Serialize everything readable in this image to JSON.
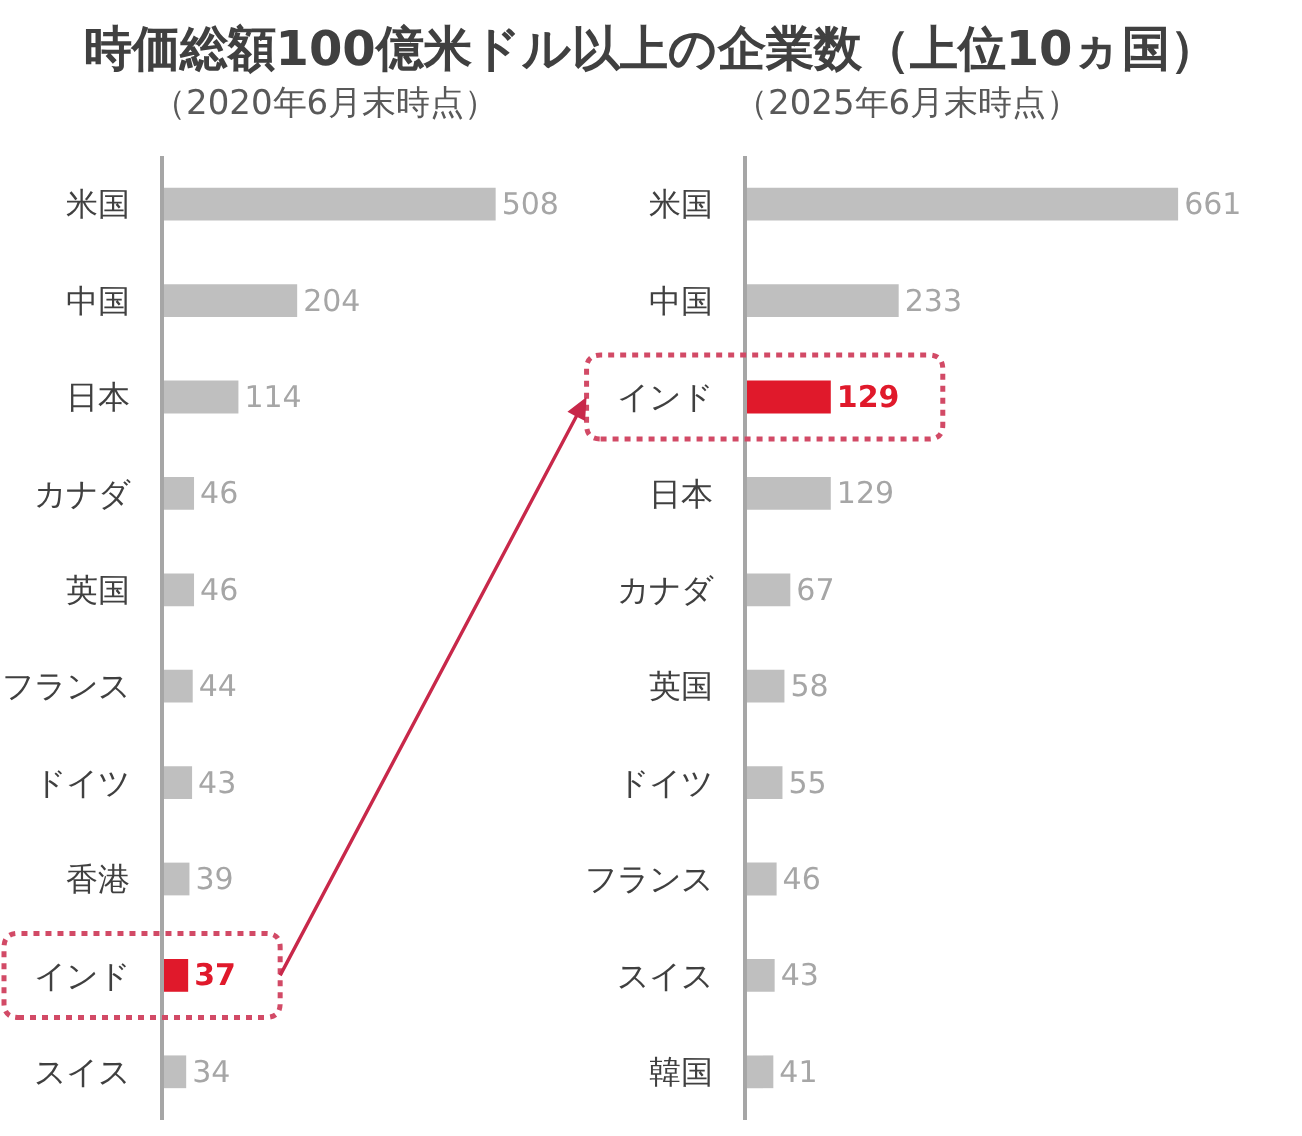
{
  "chart_data": [
    {
      "type": "bar",
      "orientation": "horizontal",
      "title": "時価総額100億米ドル以上の企業数（上位10ヵ国）",
      "subtitle": "（2020年6月末時点）",
      "categories": [
        "米国",
        "中国",
        "日本",
        "カナダ",
        "英国",
        "フランス",
        "ドイツ",
        "香港",
        "インド",
        "スイス"
      ],
      "values": [
        508,
        204,
        114,
        46,
        46,
        44,
        43,
        39,
        37,
        34
      ],
      "colors": [
        "#bfbfbf",
        "#bfbfbf",
        "#bfbfbf",
        "#bfbfbf",
        "#bfbfbf",
        "#bfbfbf",
        "#bfbfbf",
        "#bfbfbf",
        "#e0192b",
        "#bfbfbf"
      ],
      "data_labels": true,
      "tick_labels": "y"
    },
    {
      "type": "bar",
      "orientation": "horizontal",
      "subtitle": "（2025年6月末時点）",
      "categories": [
        "米国",
        "中国",
        "インド",
        "日本",
        "カナダ",
        "英国",
        "ドイツ",
        "フランス",
        "スイス",
        "韓国"
      ],
      "values": [
        661,
        233,
        129,
        129,
        67,
        58,
        55,
        46,
        43,
        41
      ],
      "colors": [
        "#bfbfbf",
        "#bfbfbf",
        "#e0192b",
        "#bfbfbf",
        "#bfbfbf",
        "#bfbfbf",
        "#bfbfbf",
        "#bfbfbf",
        "#bfbfbf",
        "#bfbfbf"
      ],
      "data_labels": true,
      "tick_labels": "y"
    }
  ]
}
